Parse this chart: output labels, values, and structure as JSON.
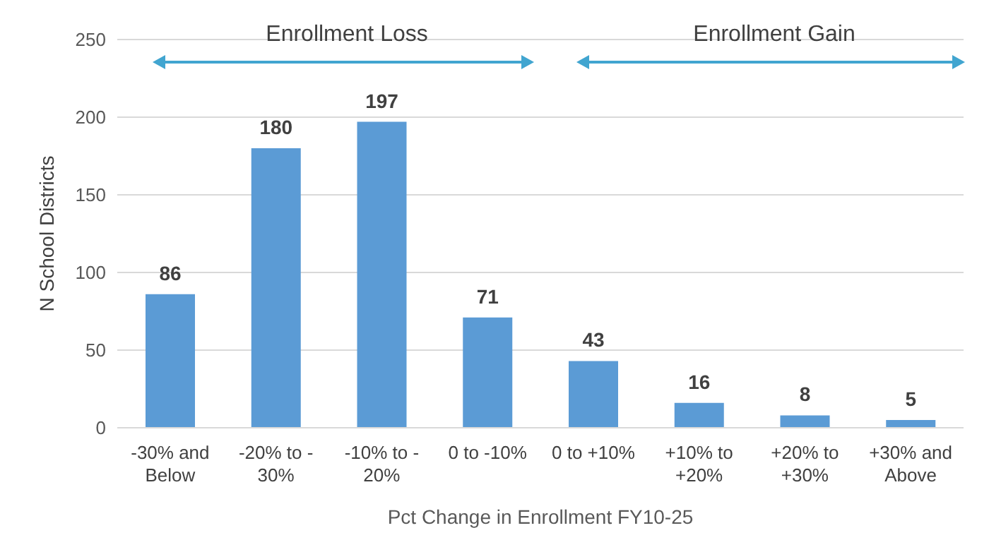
{
  "chart_data": {
    "type": "bar",
    "categories": [
      "-30% and Below",
      "-20% to - 30%",
      "-10% to - 20%",
      "0 to -10%",
      "0 to +10%",
      "+10% to +20%",
      "+20% to +30%",
      "+30% and Above"
    ],
    "values": [
      86,
      180,
      197,
      71,
      43,
      16,
      8,
      5
    ],
    "color": "#5b9bd5",
    "ylim": [
      0,
      250
    ],
    "yticks": [
      0,
      50,
      100,
      150,
      200,
      250
    ],
    "grid": "y",
    "data_labels": true,
    "xlabel": "Pct Change in Enrollment FY10-25",
    "ylabel": "N School Districts",
    "annotations": [
      "Enrollment Loss",
      "Enrollment Gain"
    ]
  }
}
